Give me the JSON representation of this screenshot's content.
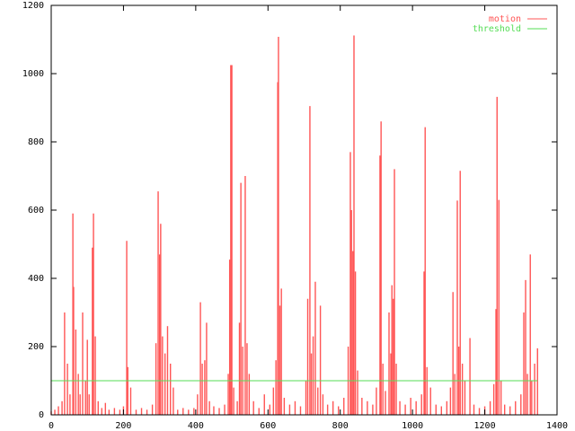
{
  "chart_data": {
    "type": "impulses",
    "xlim": [
      0,
      1400
    ],
    "xticks": [
      0,
      200,
      400,
      600,
      800,
      1000,
      1200,
      1400
    ],
    "ylim": [
      0,
      1200
    ],
    "yticks": [
      0,
      200,
      400,
      600,
      800,
      1000,
      1200
    ],
    "legend": "upper right",
    "series": [
      {
        "name": "motion",
        "color": "#ff5555",
        "style": "impulses",
        "x": [
          0,
          10,
          20,
          30,
          37,
          45,
          52,
          60,
          62,
          68,
          75,
          80,
          87,
          95,
          100,
          105,
          114,
          117,
          122,
          130,
          140,
          150,
          160,
          175,
          190,
          200,
          209,
          212,
          220,
          235,
          250,
          265,
          280,
          290,
          296,
          300,
          303,
          308,
          315,
          322,
          330,
          338,
          350,
          365,
          380,
          395,
          405,
          413,
          418,
          425,
          430,
          438,
          450,
          465,
          480,
          490,
          494,
          497,
          500,
          505,
          515,
          521,
          525,
          530,
          537,
          542,
          548,
          560,
          575,
          590,
          605,
          615,
          622,
          627,
          629,
          633,
          637,
          645,
          660,
          675,
          690,
          705,
          710,
          716,
          720,
          725,
          731,
          738,
          745,
          752,
          765,
          780,
          795,
          810,
          822,
          828,
          831,
          835,
          838,
          842,
          848,
          860,
          875,
          890,
          900,
          910,
          913,
          918,
          925,
          935,
          940,
          943,
          947,
          950,
          955,
          965,
          980,
          995,
          1010,
          1025,
          1032,
          1035,
          1040,
          1050,
          1065,
          1080,
          1095,
          1105,
          1112,
          1117,
          1124,
          1128,
          1132,
          1138,
          1145,
          1159,
          1170,
          1185,
          1200,
          1215,
          1225,
          1231,
          1234,
          1239,
          1245,
          1255,
          1270,
          1285,
          1300,
          1308,
          1313,
          1318,
          1326,
          1330,
          1338,
          1346
        ],
        "values": [
          10,
          15,
          25,
          40,
          300,
          150,
          60,
          590,
          375,
          250,
          120,
          60,
          300,
          100,
          220,
          60,
          490,
          590,
          230,
          40,
          20,
          35,
          15,
          20,
          15,
          25,
          510,
          140,
          80,
          15,
          20,
          15,
          30,
          210,
          655,
          470,
          560,
          230,
          180,
          260,
          150,
          80,
          15,
          20,
          15,
          20,
          60,
          330,
          150,
          160,
          270,
          40,
          25,
          20,
          30,
          120,
          455,
          1025,
          1025,
          80,
          40,
          270,
          680,
          200,
          700,
          210,
          120,
          40,
          20,
          60,
          30,
          80,
          160,
          975,
          1108,
          320,
          370,
          50,
          30,
          40,
          25,
          100,
          340,
          905,
          180,
          230,
          390,
          80,
          320,
          60,
          30,
          40,
          25,
          50,
          200,
          770,
          600,
          480,
          1112,
          420,
          130,
          50,
          40,
          30,
          80,
          760,
          860,
          150,
          70,
          300,
          180,
          380,
          340,
          720,
          150,
          40,
          30,
          50,
          40,
          60,
          420,
          843,
          140,
          80,
          30,
          25,
          40,
          80,
          360,
          120,
          628,
          200,
          715,
          150,
          100,
          225,
          30,
          20,
          25,
          40,
          90,
          310,
          932,
          630,
          100,
          30,
          25,
          40,
          60,
          300,
          395,
          120,
          470,
          100,
          150,
          195
        ]
      },
      {
        "name": "threshold",
        "color": "#55dd55",
        "style": "line",
        "x": [
          0,
          1346
        ],
        "values": [
          100,
          100
        ]
      }
    ]
  }
}
